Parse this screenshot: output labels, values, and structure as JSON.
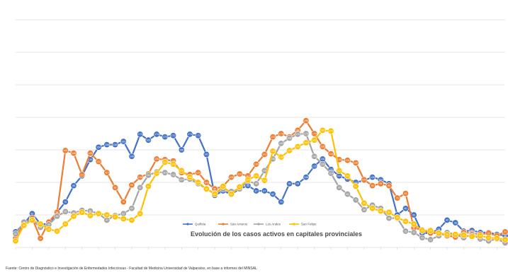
{
  "source_note": "Fuente: Centro de Diagnóstico e Investigación de Enfermedades Infecciosas - Facultad de Medicina Universidad de Valparaíso, en base a informes del MINSAL",
  "colors": {
    "Quillota": "#4472c4",
    "San Antonio": "#ed7d31",
    "Los Andes": "#a5a5a5",
    "San Felipe": "#ffc000",
    "grid": "#dcdcdc"
  },
  "chart_data": {
    "type": "line",
    "title": "Evolución de los casos activos en capitales provinciales",
    "xlabel": "",
    "ylabel": "",
    "grid": true,
    "legend_position": "bottom-right",
    "data_labels": true,
    "ylim": [
      0,
      350
    ],
    "y_gridlines": [
      0,
      50,
      100,
      150,
      200,
      250,
      300,
      350
    ],
    "x": [
      1,
      2,
      3,
      4,
      5,
      6,
      7,
      8,
      9,
      10,
      11,
      12,
      13,
      14,
      15,
      16,
      17,
      18,
      19,
      20,
      21,
      22,
      23,
      24,
      25,
      26,
      27,
      28,
      29,
      30,
      31,
      32,
      33,
      34,
      35,
      36,
      37,
      38,
      39,
      40,
      41,
      42,
      43,
      44,
      45,
      46,
      47,
      48,
      49,
      50,
      51,
      52,
      53,
      54,
      55,
      56,
      57,
      58,
      59,
      60
    ],
    "series": [
      {
        "name": "Quillota",
        "values": [
          24,
          36,
          52,
          36,
          36,
          54,
          70,
          95,
          110,
          135,
          154,
          158,
          158,
          163,
          140,
          174,
          165,
          174,
          170,
          172,
          150,
          174,
          172,
          143,
          80,
          87,
          82,
          90,
          95,
          87,
          87,
          82,
          70,
          98,
          98,
          108,
          125,
          136,
          120,
          110,
          105,
          100,
          103,
          108,
          104,
          98,
          50,
          60,
          50,
          22,
          22,
          28,
          42,
          38,
          25,
          26,
          23,
          23,
          20,
          18
        ]
      },
      {
        "name": "San Antonio",
        "values": [
          14,
          37,
          45,
          14,
          39,
          54,
          149,
          145,
          112,
          145,
          132,
          115,
          92,
          70,
          96,
          108,
          113,
          136,
          135,
          133,
          115,
          112,
          115,
          100,
          90,
          94,
          108,
          113,
          110,
          128,
          143,
          170,
          175,
          170,
          180,
          195,
          175,
          155,
          144,
          135,
          134,
          130,
          104,
          95,
          98,
          95,
          76,
          83,
          30,
          27,
          22,
          22,
          18,
          16,
          23,
          22,
          20,
          22,
          18,
          24
        ]
      },
      {
        "name": "Los Andes",
        "values": [
          21,
          39,
          42,
          31,
          35,
          48,
          55,
          53,
          57,
          56,
          52,
          42,
          49,
          52,
          60,
          92,
          111,
          116,
          115,
          112,
          104,
          105,
          98,
          90,
          83,
          90,
          86,
          90,
          102,
          98,
          118,
          136,
          160,
          168,
          174,
          175,
          140,
          128,
          114,
          92,
          82,
          73,
          58,
          65,
          60,
          45,
          45,
          25,
          23,
          15,
          12,
          18,
          23,
          20,
          15,
          20,
          13,
          10,
          13,
          7
        ]
      },
      {
        "name": "San Felipe",
        "values": [
          10,
          34,
          42,
          36,
          28,
          25,
          36,
          48,
          54,
          49,
          52,
          50,
          47,
          44,
          42,
          52,
          94,
          114,
          131,
          128,
          118,
          108,
          100,
          90,
          82,
          94,
          82,
          93,
          104,
          110,
          103,
          148,
          139,
          149,
          155,
          161,
          165,
          180,
          179,
          118,
          110,
          94,
          68,
          60,
          56,
          54,
          46,
          40,
          36,
          26,
          26,
          22,
          20,
          20,
          19,
          17,
          18,
          15,
          14,
          12
        ]
      }
    ]
  }
}
